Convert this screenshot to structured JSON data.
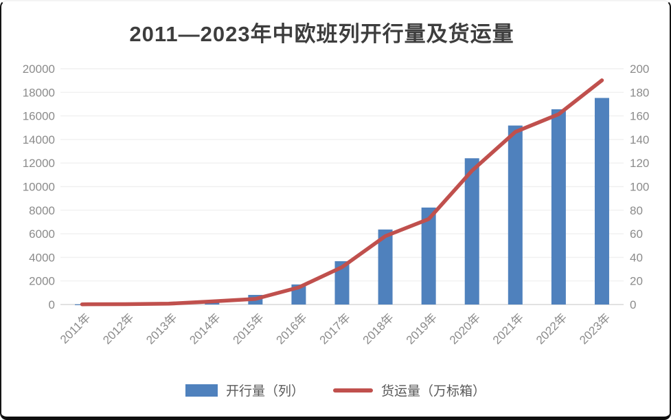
{
  "chart_data": {
    "type": "bar",
    "subtype": "combo-bar-line-dual-axis",
    "title": "2011—2023年中欧班列开行量及货运量",
    "categories": [
      "2011年",
      "2012年",
      "2013年",
      "2014年",
      "2015年",
      "2016年",
      "2017年",
      "2018年",
      "2019年",
      "2020年",
      "2021年",
      "2022年",
      "2023年"
    ],
    "series": [
      {
        "name": "开行量（列）",
        "type": "bar",
        "axis": "left",
        "color": "#4F81BD",
        "values": [
          17,
          42,
          80,
          308,
          815,
          1702,
          3673,
          6363,
          8225,
          12406,
          15183,
          16562,
          17523
        ]
      },
      {
        "name": "货运量（万标箱）",
        "type": "line",
        "axis": "right",
        "color": "#C0504D",
        "values": [
          0.15,
          0.3,
          0.7,
          2.6,
          4.7,
          14.5,
          31.7,
          58,
          72.5,
          113.5,
          146.4,
          161.4,
          190.2
        ]
      }
    ],
    "left_axis": {
      "min": 0,
      "max": 20000,
      "step": 2000
    },
    "right_axis": {
      "min": 0,
      "max": 200,
      "step": 20
    },
    "grid": true,
    "legend_position": "bottom",
    "x_label_rotation": -45,
    "colors": {
      "grid_line": "#f0f0f0",
      "baseline": "#d9d9d9",
      "tick_text": "#8b8b8b",
      "title_text": "#3d3d3d",
      "legend_text": "#595959"
    }
  }
}
